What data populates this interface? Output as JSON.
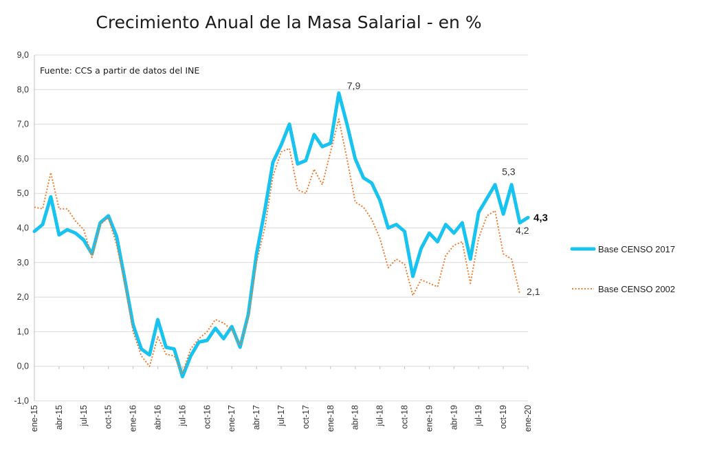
{
  "chart_data": {
    "type": "line",
    "title": "Crecimiento Anual de la Masa Salarial - en %",
    "source_note": "Fuente: CCS a partir de datos del INE",
    "ylim": [
      -1,
      9
    ],
    "yticks": [
      "-1,0",
      "0,0",
      "1,0",
      "2,0",
      "3,0",
      "4,0",
      "5,0",
      "6,0",
      "7,0",
      "8,0",
      "9,0"
    ],
    "xticks": [
      "ene-15",
      "abr-15",
      "jul-15",
      "oct-15",
      "ene-16",
      "abr-16",
      "jul-16",
      "oct-16",
      "ene-17",
      "abr-17",
      "jul-17",
      "oct-17",
      "ene-18",
      "abr-18",
      "jul-18",
      "oct-18",
      "ene-19",
      "abr-19",
      "jul-19",
      "oct-19",
      "ene-20"
    ],
    "grid": "horizontal",
    "legend_placement": "right",
    "series": [
      {
        "name": "Base CENSO 2017",
        "color": "#19c3f0",
        "style": "solid",
        "values": [
          3.9,
          4.1,
          4.9,
          3.8,
          3.95,
          3.85,
          3.65,
          3.25,
          4.15,
          4.35,
          3.75,
          2.5,
          1.2,
          0.5,
          0.33,
          1.35,
          0.55,
          0.5,
          -0.3,
          0.3,
          0.7,
          0.75,
          1.1,
          0.8,
          1.15,
          0.55,
          1.5,
          3.25,
          4.5,
          5.9,
          6.4,
          7.0,
          5.85,
          5.95,
          6.7,
          6.35,
          6.45,
          7.9,
          7.0,
          6.0,
          5.45,
          5.3,
          4.8,
          4.0,
          4.1,
          3.9,
          2.6,
          3.4,
          3.85,
          3.6,
          4.1,
          3.85,
          4.15,
          3.1,
          4.45,
          4.85,
          5.25,
          4.4,
          5.25,
          4.15,
          4.3
        ]
      },
      {
        "name": "Base CENSO 2002",
        "color": "#f07a2a",
        "style": "dotted",
        "values": [
          4.6,
          4.55,
          5.6,
          4.55,
          4.55,
          4.2,
          3.95,
          3.15,
          4.1,
          4.3,
          3.5,
          2.4,
          1.0,
          0.3,
          0.0,
          0.85,
          0.35,
          0.3,
          -0.2,
          0.5,
          0.8,
          1.0,
          1.35,
          1.25,
          1.05,
          0.6,
          1.4,
          3.0,
          4.0,
          5.5,
          6.2,
          6.3,
          5.1,
          5.0,
          5.7,
          5.25,
          6.2,
          7.15,
          6.0,
          4.75,
          4.6,
          4.25,
          3.7,
          2.85,
          3.1,
          2.95,
          2.05,
          2.5,
          2.4,
          2.3,
          3.2,
          3.5,
          3.6,
          2.4,
          3.7,
          4.35,
          4.5,
          3.25,
          3.1,
          2.1
        ]
      }
    ],
    "annotations": [
      {
        "series": 0,
        "index": 37,
        "text": "7,9"
      },
      {
        "series": 0,
        "index": 58,
        "text": "5,3"
      },
      {
        "series": 0,
        "index": 59,
        "text": "4,2"
      },
      {
        "series": 0,
        "index": 60,
        "text": "4,3"
      },
      {
        "series": 1,
        "index": 59,
        "text": "2,1"
      }
    ]
  }
}
